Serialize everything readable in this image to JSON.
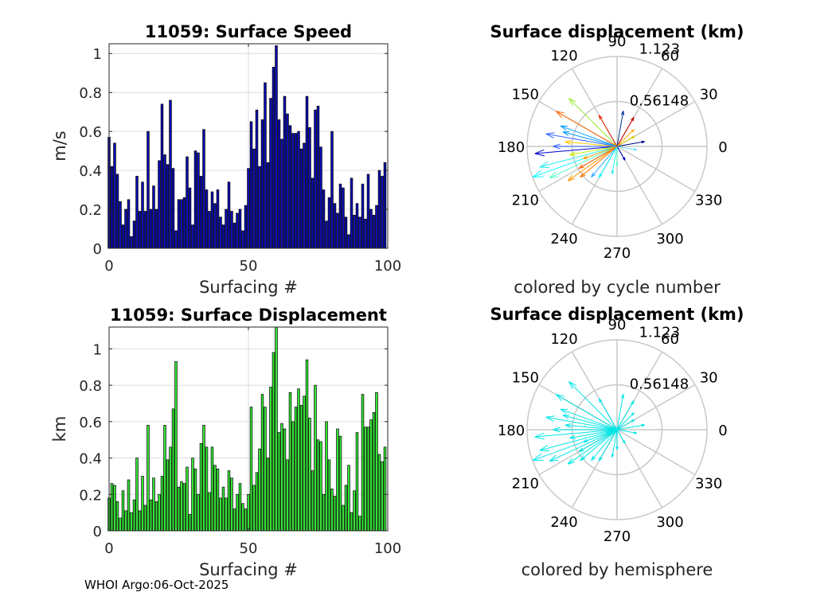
{
  "footer": "WHOI Argo:06-Oct-2025",
  "chart_data": [
    {
      "id": "speed",
      "type": "bar",
      "title": "11059: Surface Speed",
      "xlabel": "Surfacing #",
      "ylabel": "m/s",
      "xlim": [
        0,
        100
      ],
      "ylim": [
        0,
        1.05
      ],
      "xticks": [
        0,
        50,
        100
      ],
      "yticks": [
        0,
        0.2,
        0.4,
        0.6,
        0.8,
        1
      ],
      "ytick_labels": [
        "0",
        "0.2",
        "0.4",
        "0.6",
        "0.8",
        "1"
      ],
      "bar_color": "#0a0ab4",
      "grid": true,
      "values": [
        0.57,
        0.42,
        0.54,
        0.38,
        0.24,
        0.12,
        0.2,
        0.25,
        0.06,
        0.14,
        0.37,
        0.19,
        0.34,
        0.19,
        0.6,
        0.2,
        0.32,
        0.2,
        0.45,
        0.74,
        0.48,
        0.43,
        0.76,
        0.41,
        0.09,
        0.25,
        0.25,
        0.26,
        0.47,
        0.31,
        0.12,
        0.5,
        0.49,
        0.37,
        0.61,
        0.3,
        0.19,
        0.29,
        0.23,
        0.3,
        0.16,
        0.12,
        0.2,
        0.34,
        0.19,
        0.13,
        0.18,
        0.2,
        0.09,
        0.22,
        0.41,
        0.65,
        0.51,
        0.71,
        0.42,
        0.66,
        0.85,
        0.44,
        0.77,
        0.93,
        1.04,
        0.66,
        0.56,
        0.78,
        0.69,
        0.63,
        0.59,
        0.59,
        0.6,
        0.51,
        0.54,
        0.78,
        0.62,
        0.36,
        0.71,
        0.73,
        0.52,
        0.3,
        0.14,
        0.26,
        0.6,
        0.23,
        0.18,
        0.33,
        0.31,
        0.16,
        0.07,
        0.36,
        0.17,
        0.23,
        0.16,
        0.33,
        0.15,
        0.38,
        0.2,
        0.17,
        0.22,
        0.4,
        0.37,
        0.44
      ]
    },
    {
      "id": "displacement",
      "type": "bar",
      "title": "11059: Surface Displacement",
      "xlabel": "Surfacing #",
      "ylabel": "km",
      "xlim": [
        0,
        100
      ],
      "ylim": [
        0,
        1.12
      ],
      "xticks": [
        0,
        50,
        100
      ],
      "yticks": [
        0,
        0.2,
        0.4,
        0.6,
        0.8,
        1
      ],
      "ytick_labels": [
        "0",
        "0.2",
        "0.4",
        "0.6",
        "0.8",
        "1"
      ],
      "bar_color": "#33e633",
      "grid": true,
      "values": [
        0.18,
        0.26,
        0.25,
        0.16,
        0.07,
        0.22,
        0.11,
        0.28,
        0.1,
        0.17,
        0.4,
        0.11,
        0.3,
        0.14,
        0.58,
        0.17,
        0.29,
        0.16,
        0.2,
        0.3,
        0.58,
        0.39,
        0.46,
        0.67,
        0.93,
        0.24,
        0.27,
        0.26,
        0.35,
        0.09,
        0.4,
        0.34,
        0.2,
        0.48,
        0.58,
        0.46,
        0.21,
        0.46,
        0.36,
        0.34,
        0.18,
        0.24,
        0.18,
        0.33,
        0.29,
        0.12,
        0.2,
        0.26,
        0.15,
        0.12,
        0.2,
        0.68,
        0.25,
        0.32,
        0.45,
        0.75,
        0.68,
        0.4,
        0.79,
        0.98,
        1.12,
        0.54,
        0.59,
        0.56,
        0.39,
        0.76,
        0.6,
        0.68,
        0.78,
        0.69,
        0.74,
        0.94,
        0.62,
        0.33,
        0.8,
        0.5,
        0.49,
        0.2,
        0.6,
        0.39,
        0.23,
        0.19,
        0.56,
        0.52,
        0.14,
        0.25,
        0.36,
        0.1,
        0.22,
        0.54,
        0.08,
        0.75,
        0.57,
        0.57,
        0.61,
        0.65,
        0.76,
        0.42,
        0.38,
        0.46
      ]
    },
    {
      "id": "polar-cycle",
      "type": "polar",
      "title": "Surface displacement (km)",
      "caption": "colored by cycle number",
      "rmax": 1.123,
      "rlabels": [
        "1.123",
        "0.56148"
      ],
      "theta_labels": [
        "0",
        "30",
        "60",
        "90",
        "120",
        "150",
        "180",
        "210",
        "240",
        "270",
        "300",
        "330"
      ],
      "arrows": [
        [
          200,
          1.12
        ],
        [
          195,
          1.0
        ],
        [
          205,
          0.93
        ],
        [
          185,
          1.03
        ],
        [
          170,
          0.9
        ],
        [
          160,
          0.75
        ],
        [
          150,
          0.88
        ],
        [
          215,
          0.75
        ],
        [
          175,
          0.65
        ],
        [
          190,
          0.6
        ],
        [
          135,
          0.85
        ],
        [
          120,
          0.45
        ],
        [
          80,
          0.45
        ],
        [
          60,
          0.42
        ],
        [
          45,
          0.3
        ],
        [
          30,
          0.25
        ],
        [
          10,
          0.35
        ],
        [
          350,
          0.25
        ],
        [
          220,
          0.6
        ],
        [
          230,
          0.5
        ],
        [
          240,
          0.45
        ],
        [
          260,
          0.35
        ],
        [
          270,
          0.25
        ],
        [
          300,
          0.2
        ],
        [
          180,
          0.8
        ],
        [
          165,
          0.7
        ],
        [
          210,
          0.55
        ],
        [
          200,
          0.45
        ]
      ],
      "arrow_colors": [
        "#00ffff",
        "#22eeee",
        "#55ffcc",
        "#0000cc",
        "#3366ff",
        "#0099ff",
        "#ff6600",
        "#ff9900",
        "#ffcc00",
        "#ccee00",
        "#99ee33",
        "#ee2200",
        "#003399",
        "#cc0000",
        "#ffaa00",
        "#ddcc00",
        "#000088",
        "#66ddff",
        "#ff7700",
        "#33aaff"
      ]
    },
    {
      "id": "polar-hemisphere",
      "type": "polar",
      "title": "Surface displacement (km)",
      "caption": "colored by hemisphere",
      "rmax": 1.123,
      "rlabels": [
        "1.123",
        "0.56148"
      ],
      "theta_labels": [
        "0",
        "30",
        "60",
        "90",
        "120",
        "150",
        "180",
        "210",
        "240",
        "270",
        "300",
        "330"
      ],
      "arrows": [
        [
          200,
          1.12
        ],
        [
          195,
          1.0
        ],
        [
          205,
          0.93
        ],
        [
          185,
          1.03
        ],
        [
          170,
          0.9
        ],
        [
          160,
          0.75
        ],
        [
          150,
          0.88
        ],
        [
          215,
          0.75
        ],
        [
          175,
          0.65
        ],
        [
          190,
          0.6
        ],
        [
          135,
          0.85
        ],
        [
          120,
          0.45
        ],
        [
          80,
          0.45
        ],
        [
          60,
          0.42
        ],
        [
          45,
          0.3
        ],
        [
          30,
          0.25
        ],
        [
          10,
          0.35
        ],
        [
          350,
          0.25
        ],
        [
          220,
          0.6
        ],
        [
          230,
          0.5
        ],
        [
          240,
          0.45
        ],
        [
          260,
          0.35
        ],
        [
          270,
          0.25
        ],
        [
          300,
          0.2
        ],
        [
          180,
          0.8
        ],
        [
          165,
          0.7
        ],
        [
          210,
          0.55
        ],
        [
          200,
          0.45
        ]
      ],
      "arrow_colors": [
        "#00e6e6"
      ]
    }
  ]
}
